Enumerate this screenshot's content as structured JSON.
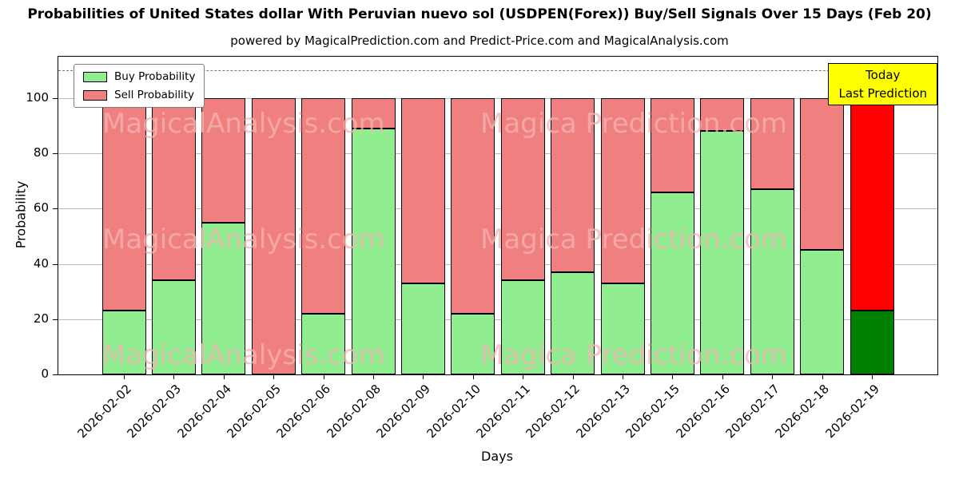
{
  "title": "Probabilities of United States dollar With Peruvian nuevo sol (USDPEN(Forex)) Buy/Sell Signals Over 15 Days (Feb 20)",
  "subtitle": "powered by MagicalPrediction.com and Predict-Price.com and MagicalAnalysis.com",
  "annotation_box": {
    "line1": "Today",
    "line2": "Last Prediction",
    "bg_color": "#ffff00"
  },
  "watermarks": {
    "left_text": "MagicalAnalysis.com",
    "right_text": "Magica Prediction.com",
    "color": "#f5b4b4"
  },
  "chart_data": {
    "type": "bar",
    "stacked": true,
    "title": "Probabilities of United States dollar With Peruvian nuevo sol (USDPEN(Forex)) Buy/Sell Signals Over 15 Days (Feb 20)",
    "xlabel": "Days",
    "ylabel": "Probability",
    "ylim": [
      0,
      115
    ],
    "yticks": [
      0,
      20,
      40,
      60,
      80,
      100
    ],
    "dashed_line_y": 110,
    "grid": true,
    "legend_position": "upper left",
    "categories": [
      "2026-02-02",
      "2026-02-03",
      "2026-02-04",
      "2026-02-05",
      "2026-02-06",
      "2026-02-08",
      "2026-02-09",
      "2026-02-10",
      "2026-02-11",
      "2026-02-12",
      "2026-02-13",
      "2026-02-15",
      "2026-02-16",
      "2026-02-17",
      "2026-02-18",
      "2026-02-19"
    ],
    "series": [
      {
        "name": "Buy Probability",
        "color": "#90ee90",
        "values": [
          23,
          34,
          55,
          0,
          22,
          89,
          33,
          22,
          34,
          37,
          33,
          66,
          88,
          67,
          45,
          23
        ]
      },
      {
        "name": "Sell Probability",
        "color": "#f08080",
        "values": [
          77,
          66,
          45,
          100,
          78,
          11,
          67,
          78,
          66,
          63,
          67,
          34,
          12,
          33,
          55,
          77
        ]
      }
    ],
    "last_bar_colors": {
      "buy": "#008000",
      "sell": "#ff0000"
    }
  }
}
